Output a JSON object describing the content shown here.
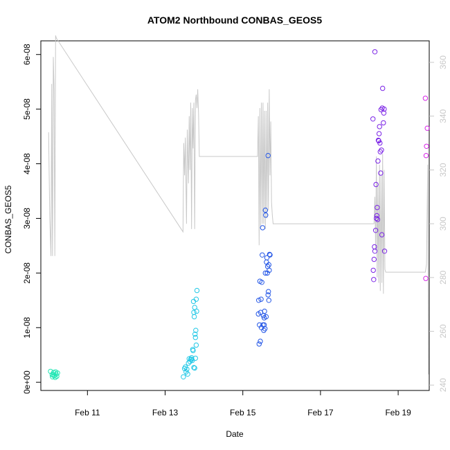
{
  "chart_data": {
    "type": "scatter",
    "title": "ATOM2 Northbound CONBAS_GEOS5",
    "xlabel": "Date",
    "ylabel": "CONBAS_GEOS5",
    "x_unit": "days since Feb 10",
    "xlim": [
      -0.2,
      9.8
    ],
    "ylim": [
      -1.5e-09,
      6.25e-08
    ],
    "y2lim": [
      238,
      368
    ],
    "x_ticks": [
      {
        "v": 1,
        "label": "Feb 11"
      },
      {
        "v": 3,
        "label": "Feb 13"
      },
      {
        "v": 5,
        "label": "Feb 15"
      },
      {
        "v": 7,
        "label": "Feb 17"
      },
      {
        "v": 9,
        "label": "Feb 19"
      }
    ],
    "y_ticks": [
      {
        "v": 0,
        "label": "0e+00"
      },
      {
        "v": 1e-08,
        "label": "1e-08"
      },
      {
        "v": 2e-08,
        "label": "2e-08"
      },
      {
        "v": 3e-08,
        "label": "3e-08"
      },
      {
        "v": 4e-08,
        "label": "4e-08"
      },
      {
        "v": 5e-08,
        "label": "5e-08"
      },
      {
        "v": 6e-08,
        "label": "6e-08"
      }
    ],
    "y2_ticks": [
      {
        "v": 240,
        "label": "240"
      },
      {
        "v": 260,
        "label": "260"
      },
      {
        "v": 280,
        "label": "280"
      },
      {
        "v": 300,
        "label": "300"
      },
      {
        "v": 320,
        "label": "320"
      },
      {
        "v": 340,
        "label": "340"
      },
      {
        "v": 360,
        "label": "360"
      }
    ],
    "grid": false,
    "colors": {
      "axis": "#000000",
      "right_axis": "#c8c8c8",
      "line": "#c8c8c8",
      "day10": "#22e6b4",
      "day13": "#22c8e6",
      "day15": "#2255e6",
      "day18": "#7a22e6",
      "day19": "#d622e6"
    },
    "series": [
      {
        "color_key": "day10",
        "points": [
          [
            0.05,
            2e-09
          ],
          [
            0.09,
            1.4e-09
          ],
          [
            0.1,
            1e-09
          ],
          [
            0.13,
            1.8e-09
          ],
          [
            0.15,
            1.2e-09
          ],
          [
            0.17,
            9e-10
          ],
          [
            0.19,
            1.5e-09
          ],
          [
            0.21,
            1.1e-09
          ],
          [
            0.23,
            1.7e-09
          ],
          [
            0.12,
            1.3e-09
          ],
          [
            0.18,
            1.9e-09
          ]
        ]
      },
      {
        "color_key": "day13",
        "points": [
          [
            3.47,
            1e-09
          ],
          [
            3.5,
            2.5e-09
          ],
          [
            3.52,
            2.8e-09
          ],
          [
            3.54,
            1.9e-09
          ],
          [
            3.56,
            2.4e-09
          ],
          [
            3.58,
            1.5e-09
          ],
          [
            3.6,
            3.5e-09
          ],
          [
            3.62,
            4.3e-09
          ],
          [
            3.64,
            3.8e-09
          ],
          [
            3.66,
            4.2e-09
          ],
          [
            3.68,
            4.5e-09
          ],
          [
            3.7,
            4e-09
          ],
          [
            3.71,
            6e-09
          ],
          [
            3.72,
            5.8e-09
          ],
          [
            3.73,
            1.48e-08
          ],
          [
            3.74,
            1.28e-08
          ],
          [
            3.75,
            1.2e-08
          ],
          [
            3.76,
            1.37e-08
          ],
          [
            3.77,
            8.8e-09
          ],
          [
            3.78,
            8.2e-09
          ],
          [
            3.79,
            9.5e-09
          ],
          [
            3.8,
            1.52e-08
          ],
          [
            3.81,
            1.3e-08
          ],
          [
            3.82,
            1.68e-08
          ],
          [
            3.8,
            6.8e-09
          ],
          [
            3.74,
            2.7e-09
          ],
          [
            3.76,
            2.6e-09
          ],
          [
            3.68,
            4.2e-09
          ],
          [
            3.78,
            4.4e-09
          ]
        ]
      },
      {
        "color_key": "day15",
        "points": [
          [
            5.4,
            1.25e-08
          ],
          [
            5.41,
            1.5e-08
          ],
          [
            5.42,
            7e-09
          ],
          [
            5.43,
            1.05e-08
          ],
          [
            5.44,
            1.85e-08
          ],
          [
            5.45,
            7.5e-09
          ],
          [
            5.46,
            1.28e-08
          ],
          [
            5.47,
            1.52e-08
          ],
          [
            5.48,
            1e-08
          ],
          [
            5.49,
            1.83e-08
          ],
          [
            5.5,
            2.33e-08
          ],
          [
            5.51,
            2.83e-08
          ],
          [
            5.52,
            1.05e-08
          ],
          [
            5.53,
            1.22e-08
          ],
          [
            5.54,
            9.5e-09
          ],
          [
            5.55,
            1.18e-08
          ],
          [
            5.56,
            1.3e-08
          ],
          [
            5.57,
            9.8e-09
          ],
          [
            5.58,
            3.15e-08
          ],
          [
            5.59,
            3.06e-08
          ],
          [
            5.6,
            1.2e-08
          ],
          [
            5.61,
            2.2e-08
          ],
          [
            5.62,
            2.28e-08
          ],
          [
            5.63,
            2e-08
          ],
          [
            5.64,
            2.12e-08
          ],
          [
            5.65,
            1.6e-08
          ],
          [
            5.66,
            1.66e-08
          ],
          [
            5.67,
            1.5e-08
          ],
          [
            5.68,
            2.05e-08
          ],
          [
            5.69,
            2.34e-08
          ],
          [
            5.7,
            2.33e-08
          ],
          [
            5.67,
            2.15e-08
          ],
          [
            5.65,
            4.15e-08
          ],
          [
            5.55,
            1.05e-08
          ],
          [
            5.58,
            2e-08
          ]
        ]
      },
      {
        "color_key": "day18",
        "points": [
          [
            8.4,
            6.05e-08
          ],
          [
            8.35,
            4.82e-08
          ],
          [
            8.36,
            2.05e-08
          ],
          [
            8.37,
            1.88e-08
          ],
          [
            8.38,
            2.25e-08
          ],
          [
            8.39,
            2.48e-08
          ],
          [
            8.4,
            2.4e-08
          ],
          [
            8.42,
            2.78e-08
          ],
          [
            8.43,
            3.62e-08
          ],
          [
            8.44,
            3e-08
          ],
          [
            8.45,
            3.05e-08
          ],
          [
            8.46,
            3.2e-08
          ],
          [
            8.47,
            2.98e-08
          ],
          [
            8.48,
            4.05e-08
          ],
          [
            8.49,
            4.43e-08
          ],
          [
            8.5,
            4.42e-08
          ],
          [
            8.51,
            4.55e-08
          ],
          [
            8.52,
            4.68e-08
          ],
          [
            8.53,
            4.38e-08
          ],
          [
            8.54,
            4.22e-08
          ],
          [
            8.55,
            3.83e-08
          ],
          [
            8.56,
            4.99e-08
          ],
          [
            8.57,
            4.25e-08
          ],
          [
            8.58,
            2.7e-08
          ],
          [
            8.59,
            5.02e-08
          ],
          [
            8.6,
            5.38e-08
          ],
          [
            8.62,
            4.75e-08
          ],
          [
            8.63,
            4.93e-08
          ],
          [
            8.64,
            5e-08
          ],
          [
            8.65,
            2.4e-08
          ]
        ]
      },
      {
        "color_key": "day19",
        "points": [
          [
            9.7,
            5.2e-08
          ],
          [
            9.75,
            4.65e-08
          ],
          [
            9.73,
            4.32e-08
          ],
          [
            9.72,
            4.15e-08
          ],
          [
            9.71,
            1.9e-08
          ]
        ]
      }
    ],
    "line_series": {
      "axis": "right",
      "color_key": "line",
      "points": [
        [
          0.0,
          334
        ],
        [
          0.03,
          302
        ],
        [
          0.06,
          288
        ],
        [
          0.08,
          352
        ],
        [
          0.09,
          312
        ],
        [
          0.1,
          288
        ],
        [
          0.12,
          362
        ],
        [
          0.14,
          350
        ],
        [
          0.16,
          288
        ],
        [
          0.18,
          370
        ],
        [
          0.2,
          369
        ],
        [
          3.46,
          297
        ],
        [
          3.48,
          330
        ],
        [
          3.5,
          318
        ],
        [
          3.52,
          332
        ],
        [
          3.55,
          300
        ],
        [
          3.57,
          335
        ],
        [
          3.6,
          315
        ],
        [
          3.62,
          340
        ],
        [
          3.64,
          320
        ],
        [
          3.66,
          345
        ],
        [
          3.68,
          298
        ],
        [
          3.7,
          343
        ],
        [
          3.72,
          328
        ],
        [
          3.74,
          345
        ],
        [
          3.76,
          298
        ],
        [
          3.78,
          346
        ],
        [
          3.8,
          348
        ],
        [
          3.82,
          343
        ],
        [
          3.84,
          350
        ],
        [
          3.86,
          341
        ],
        [
          3.88,
          325
        ],
        [
          5.38,
          325
        ],
        [
          5.4,
          340
        ],
        [
          5.42,
          292
        ],
        [
          5.44,
          343
        ],
        [
          5.46,
          298
        ],
        [
          5.48,
          345
        ],
        [
          5.5,
          300
        ],
        [
          5.52,
          345
        ],
        [
          5.54,
          300
        ],
        [
          5.56,
          342
        ],
        [
          5.58,
          298
        ],
        [
          5.6,
          342
        ],
        [
          5.62,
          302
        ],
        [
          5.64,
          345
        ],
        [
          5.66,
          305
        ],
        [
          5.68,
          350
        ],
        [
          5.7,
          318
        ],
        [
          5.72,
          338
        ],
        [
          5.74,
          308
        ],
        [
          5.76,
          303
        ],
        [
          5.78,
          300
        ],
        [
          8.38,
          300
        ],
        [
          8.4,
          310
        ],
        [
          8.42,
          290
        ],
        [
          8.44,
          325
        ],
        [
          8.46,
          280
        ],
        [
          8.48,
          315
        ],
        [
          8.5,
          278
        ],
        [
          8.52,
          322
        ],
        [
          8.54,
          275
        ],
        [
          8.56,
          318
        ],
        [
          8.58,
          278
        ],
        [
          8.6,
          326
        ],
        [
          8.62,
          274
        ],
        [
          8.64,
          320
        ],
        [
          8.66,
          283
        ],
        [
          8.68,
          282
        ],
        [
          9.7,
          282
        ],
        [
          9.73,
          285
        ],
        [
          9.76,
          322
        ],
        [
          9.78,
          244
        ]
      ]
    }
  }
}
